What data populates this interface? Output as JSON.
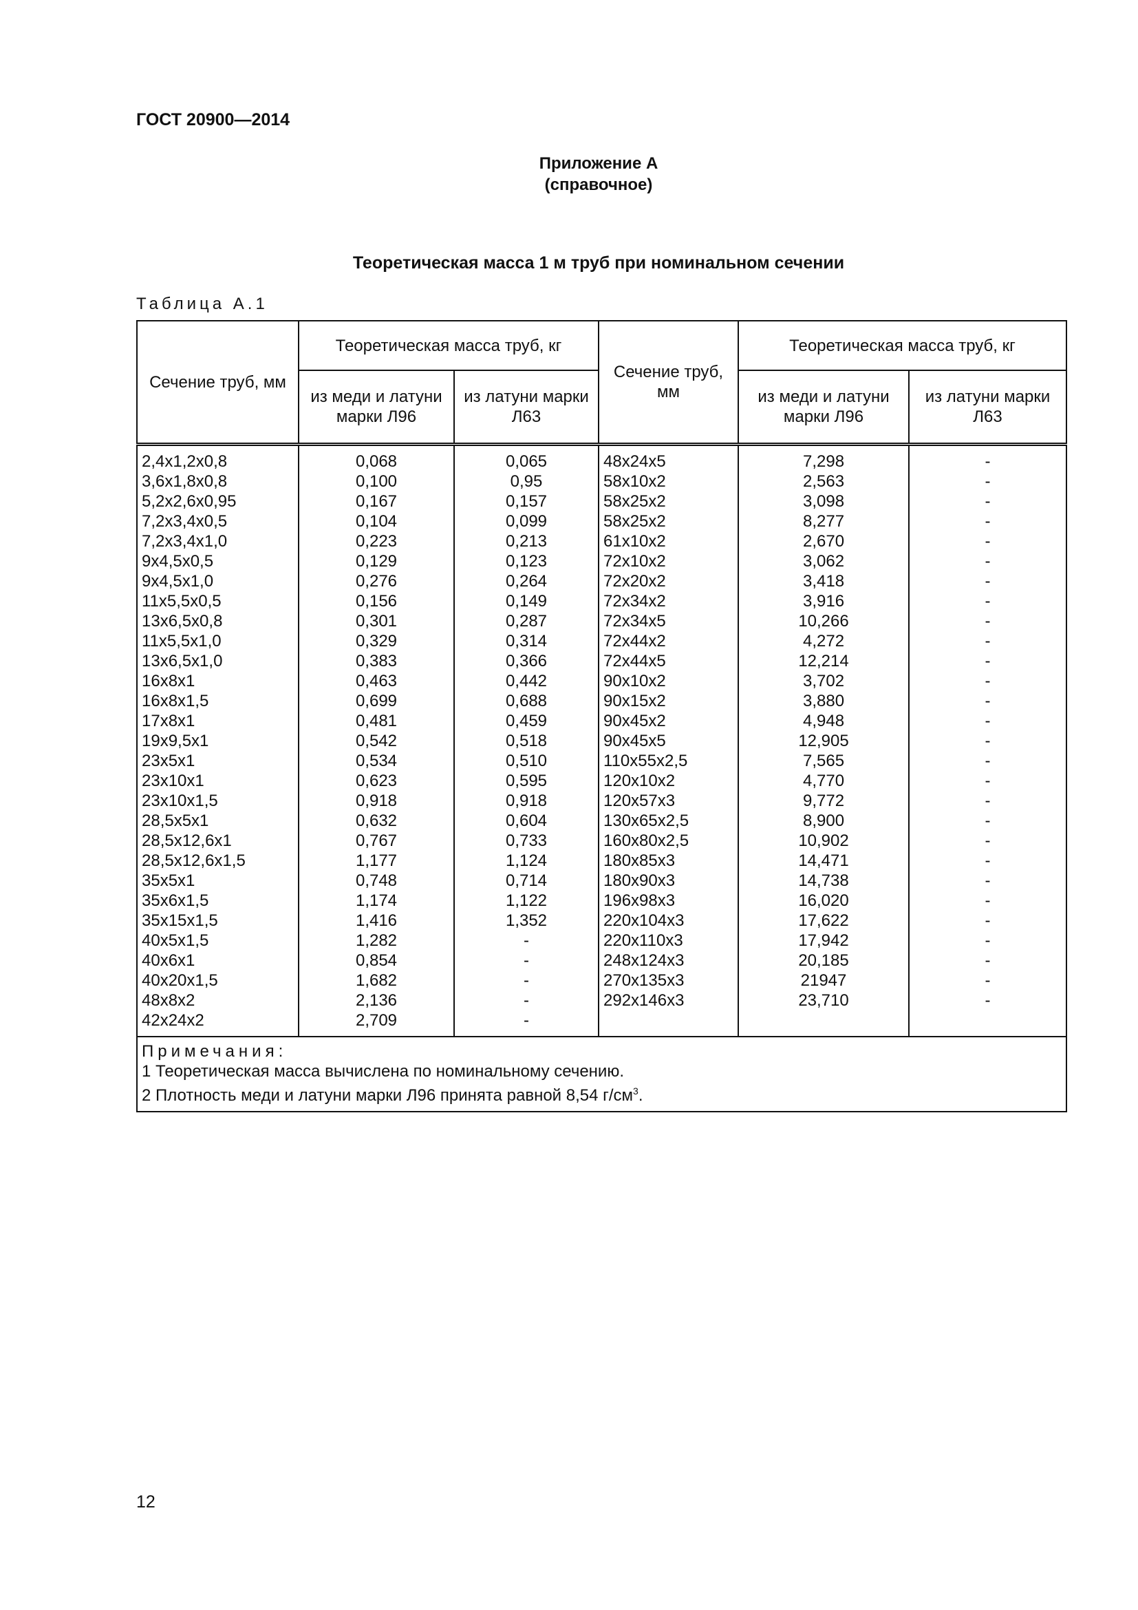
{
  "header": {
    "doc_code": "ГОСТ 20900—2014"
  },
  "appendix": {
    "title": "Приложение А",
    "subtitle": "(справочное)"
  },
  "section_title": "Теоретическая масса 1 м труб при номинальном сечении",
  "table_label": "Таблица А.1",
  "table": {
    "col_section": "Сечение труб, мм",
    "col_mass_group": "Теоретическая масса труб, кг",
    "col_copper": "из меди и латуни марки Л96",
    "col_brass": "из латуни марки Л63",
    "left_rows": [
      [
        "2,4x1,2x0,8",
        "0,068",
        "0,065"
      ],
      [
        "3,6x1,8x0,8",
        "0,100",
        "0,95"
      ],
      [
        "5,2x2,6x0,95",
        "0,167",
        "0,157"
      ],
      [
        "7,2x3,4x0,5",
        "0,104",
        "0,099"
      ],
      [
        "7,2x3,4x1,0",
        "0,223",
        "0,213"
      ],
      [
        "9x4,5x0,5",
        "0,129",
        "0,123"
      ],
      [
        "9x4,5x1,0",
        "0,276",
        "0,264"
      ],
      [
        "11x5,5x0,5",
        "0,156",
        "0,149"
      ],
      [
        "13x6,5x0,8",
        "0,301",
        "0,287"
      ],
      [
        "11x5,5x1,0",
        "0,329",
        "0,314"
      ],
      [
        "13x6,5x1,0",
        "0,383",
        "0,366"
      ],
      [
        "16x8x1",
        "0,463",
        "0,442"
      ],
      [
        "16x8x1,5",
        "0,699",
        "0,688"
      ],
      [
        "17x8x1",
        "0,481",
        "0,459"
      ],
      [
        "19x9,5x1",
        "0,542",
        "0,518"
      ],
      [
        "23x5x1",
        "0,534",
        "0,510"
      ],
      [
        "23x10x1",
        "0,623",
        "0,595"
      ],
      [
        "23x10x1,5",
        "0,918",
        "0,918"
      ],
      [
        "28,5x5x1",
        "0,632",
        "0,604"
      ],
      [
        "28,5x12,6x1",
        "0,767",
        "0,733"
      ],
      [
        "28,5x12,6x1,5",
        "1,177",
        "1,124"
      ],
      [
        "35x5x1",
        "0,748",
        "0,714"
      ],
      [
        "35x6x1,5",
        "1,174",
        "1,122"
      ],
      [
        "35x15x1,5",
        "1,416",
        "1,352"
      ],
      [
        "40x5x1,5",
        "1,282",
        "-"
      ],
      [
        "40x6x1",
        "0,854",
        "-"
      ],
      [
        "40x20x1,5",
        "1,682",
        "-"
      ],
      [
        "48x8x2",
        "2,136",
        "-"
      ],
      [
        "42x24x2",
        "2,709",
        "-"
      ]
    ],
    "right_rows": [
      [
        "48x24x5",
        "7,298",
        "-"
      ],
      [
        "58x10x2",
        "2,563",
        "-"
      ],
      [
        "58x25x2",
        "3,098",
        "-"
      ],
      [
        "58x25x2",
        "8,277",
        "-"
      ],
      [
        "61x10x2",
        "2,670",
        "-"
      ],
      [
        "72x10x2",
        "3,062",
        "-"
      ],
      [
        "72x20x2",
        "3,418",
        "-"
      ],
      [
        "72x34x2",
        "3,916",
        "-"
      ],
      [
        "72x34x5",
        "10,266",
        "-"
      ],
      [
        "72x44x2",
        "4,272",
        "-"
      ],
      [
        "72x44x5",
        "12,214",
        "-"
      ],
      [
        "90x10x2",
        "3,702",
        "-"
      ],
      [
        "90x15x2",
        "3,880",
        "-"
      ],
      [
        "90x45x2",
        "4,948",
        "-"
      ],
      [
        "90x45x5",
        "12,905",
        "-"
      ],
      [
        "110x55x2,5",
        "7,565",
        "-"
      ],
      [
        "120x10x2",
        "4,770",
        "-"
      ],
      [
        "120x57x3",
        "9,772",
        "-"
      ],
      [
        "130x65x2,5",
        "8,900",
        "-"
      ],
      [
        "160x80x2,5",
        "10,902",
        "-"
      ],
      [
        "180x85x3",
        "14,471",
        "-"
      ],
      [
        "180x90x3",
        "14,738",
        "-"
      ],
      [
        "196x98x3",
        "16,020",
        "-"
      ],
      [
        "220x104x3",
        "17,622",
        "-"
      ],
      [
        "220x110x3",
        "17,942",
        "-"
      ],
      [
        "248x124x3",
        "20,185",
        "-"
      ],
      [
        "270x135x3",
        "21947",
        "-"
      ],
      [
        "292x146x3",
        "23,710",
        "-"
      ]
    ],
    "notes_title": "Примечания:",
    "note_1": "1 Теоретическая масса вычислена по номинальному сечению.",
    "note_2": "2 Плотность меди и латуни марки Л96 принята равной 8,54 г/см",
    "note_2_sup": "3",
    "note_2_end": "."
  },
  "page_number": "12"
}
